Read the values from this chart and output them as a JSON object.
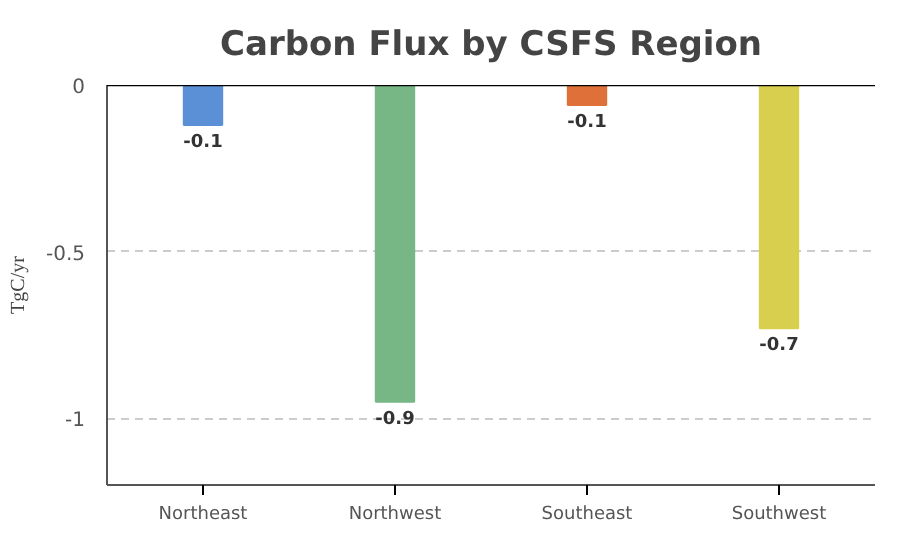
{
  "chart_data": {
    "type": "bar",
    "title": "Carbon Flux by CSFS Region",
    "ylabel": "TgC/yr",
    "categories": [
      "Northeast",
      "Northwest",
      "Southeast",
      "Southwest"
    ],
    "values": [
      -0.12,
      -0.95,
      -0.06,
      -0.73
    ],
    "colors": [
      "#5b8fd6",
      "#77b785",
      "#e0703a",
      "#d9cf4e"
    ],
    "value_labels": [
      "-0.1",
      "-0.9",
      "-0.1",
      "-0.7"
    ],
    "ylim": [
      -1.2,
      0
    ],
    "yticks": [
      0,
      -0.5,
      -1
    ],
    "grid": "y"
  }
}
